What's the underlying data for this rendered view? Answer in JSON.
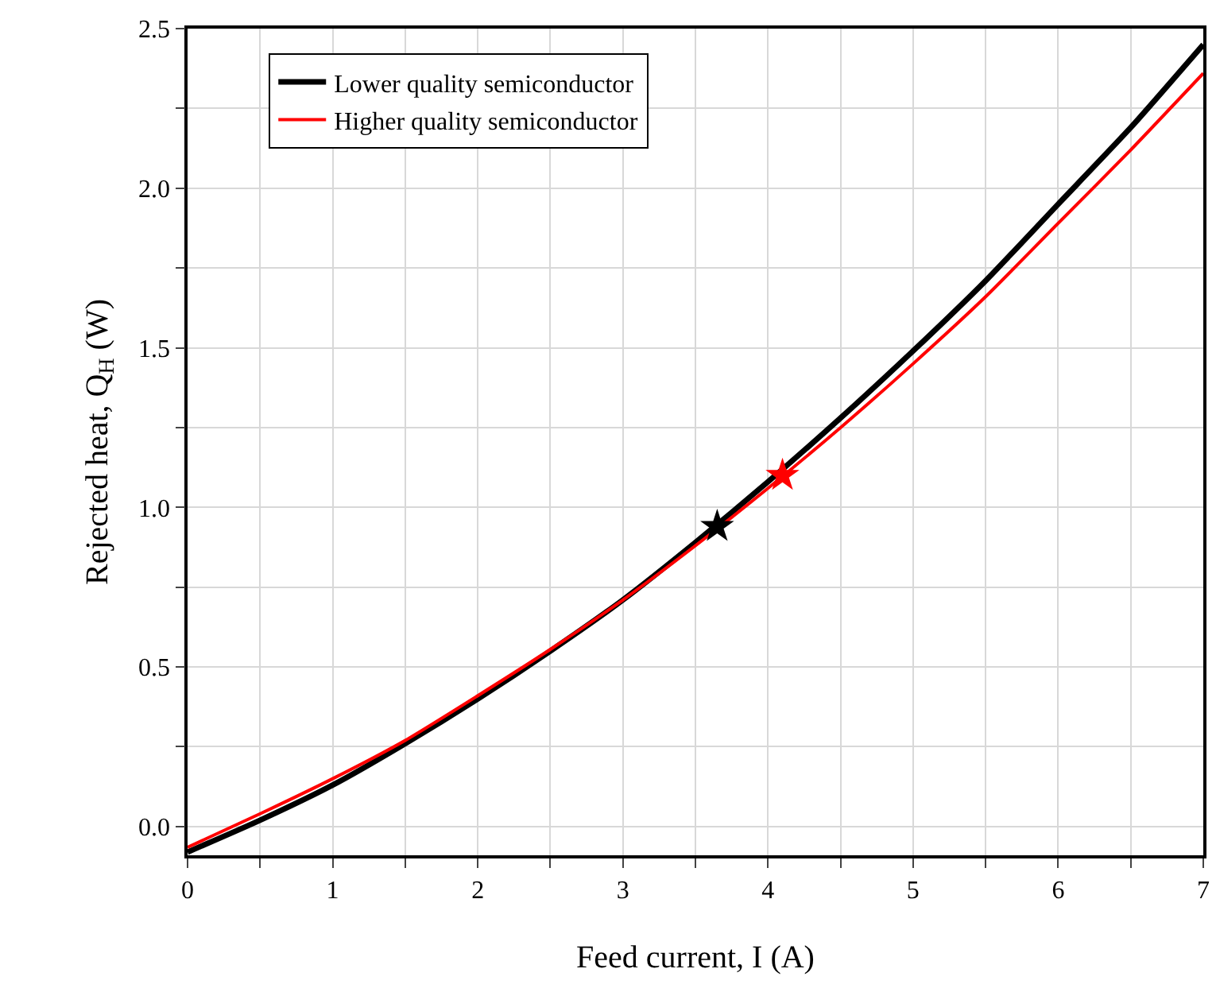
{
  "chart_data": {
    "type": "line",
    "xlabel": "Feed current, I (A)",
    "ylabel": "Rejected heat, Q$_{H}$ (W)",
    "x": [
      0,
      0.5,
      1,
      1.5,
      2,
      2.5,
      3,
      3.5,
      4,
      4.5,
      5,
      5.5,
      6,
      6.5,
      7
    ],
    "series": [
      {
        "name": "Lower quality semiconductor",
        "color": "#000000",
        "values": [
          -0.08,
          0.02,
          0.13,
          0.26,
          0.4,
          0.55,
          0.71,
          0.89,
          1.08,
          1.28,
          1.49,
          1.71,
          1.95,
          2.19,
          2.45
        ]
      },
      {
        "name": "Higher quality semiconductor",
        "color": "#ff0000",
        "values": [
          -0.065,
          0.04,
          0.15,
          0.27,
          0.41,
          0.555,
          0.71,
          0.88,
          1.06,
          1.25,
          1.45,
          1.66,
          1.89,
          2.12,
          2.36
        ]
      },
      {
        "type": "scatter",
        "marker": "star",
        "color": "#000000",
        "x": [
          3.65
        ],
        "values": [
          0.94
        ]
      },
      {
        "type": "scatter",
        "marker": "star",
        "color": "#ff0000",
        "x": [
          4.1
        ],
        "values": [
          1.1
        ]
      }
    ],
    "xlim": [
      0,
      7
    ],
    "xticks": [
      0,
      {
        "value": 0.5,
        "label": null
      },
      1,
      {
        "value": 1.5,
        "label": null
      },
      2,
      {
        "value": 2.5,
        "label": null
      },
      3,
      {
        "value": 3.5,
        "label": null
      },
      4,
      {
        "value": 4.5,
        "label": null
      },
      5,
      {
        "value": 5.5,
        "label": null
      },
      6,
      {
        "value": 6.5,
        "label": null
      },
      7
    ],
    "ylim": [
      -0.09,
      2.5
    ],
    "yticks": [
      "0.0",
      {
        "value": 0.25,
        "label": null
      },
      {
        "value": 0.5,
        "label": "0.5"
      },
      {
        "value": 0.75,
        "label": null
      },
      {
        "value": 1,
        "label": "1.0"
      },
      {
        "value": 1.25,
        "label": null
      },
      {
        "value": 1.5,
        "label": "1.5"
      },
      {
        "value": 1.75,
        "label": null
      },
      {
        "value": 2,
        "label": "2.0"
      },
      {
        "value": 2.25,
        "label": null
      },
      {
        "value": 2.5,
        "label": "2.5"
      }
    ],
    "grid": true,
    "legend": "top left",
    "marker": "none",
    "line_style": "solid"
  }
}
